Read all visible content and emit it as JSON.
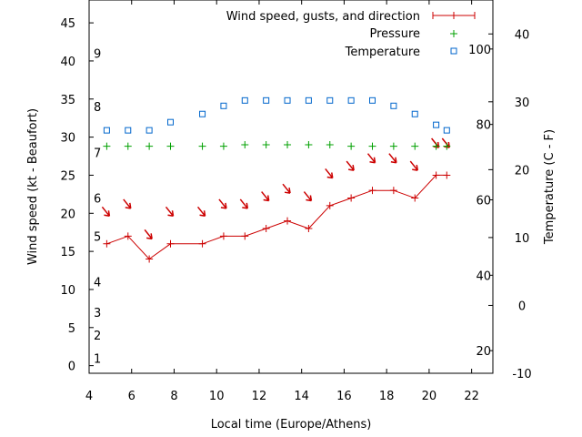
{
  "chart_data": {
    "type": "line",
    "title": "",
    "xlabel": "Local time (Europe/Athens)",
    "ylabel": "Wind speed (kt - Beaufort)",
    "y2label": "Temperature (C - F)",
    "xlim": [
      4,
      23
    ],
    "ylim": [
      -1,
      48
    ],
    "y2lim": [
      -10,
      45
    ],
    "xticks": [
      4,
      6,
      8,
      10,
      12,
      14,
      16,
      18,
      20,
      22
    ],
    "yticks": [
      0,
      5,
      10,
      15,
      20,
      25,
      30,
      35,
      40,
      45
    ],
    "y2ticks_celsius": [
      -10,
      0,
      10,
      20,
      30,
      40
    ],
    "y2ticks_fahrenheit": [
      20,
      40,
      60,
      80,
      100
    ],
    "beaufort_labels": [
      {
        "label": "1",
        "kt": 1
      },
      {
        "label": "2",
        "kt": 4
      },
      {
        "label": "3",
        "kt": 7
      },
      {
        "label": "4",
        "kt": 11
      },
      {
        "label": "5",
        "kt": 17
      },
      {
        "label": "6",
        "kt": 22
      },
      {
        "label": "7",
        "kt": 28
      },
      {
        "label": "8",
        "kt": 34
      },
      {
        "label": "9",
        "kt": 41
      }
    ],
    "legend_position": "top-right",
    "grid": false,
    "series": [
      {
        "name": "Wind speed, gusts, and direction",
        "style": "line-points",
        "color": "#cc0000",
        "x": [
          4.83,
          5.83,
          6.83,
          7.83,
          9.33,
          10.33,
          11.33,
          12.33,
          13.33,
          14.33,
          15.33,
          16.33,
          17.33,
          18.33,
          19.33,
          20.33,
          20.83
        ],
        "values": [
          16,
          17,
          14,
          16,
          16,
          17,
          17,
          18,
          19,
          18,
          21,
          22,
          23,
          23,
          22,
          25,
          25
        ],
        "direction_arrow_kt": [
          20,
          21,
          17,
          20,
          20,
          21,
          21,
          22,
          23,
          22,
          25,
          26,
          27,
          27,
          26,
          29,
          29
        ]
      },
      {
        "name": "Pressure",
        "style": "points-plus",
        "color": "#00a000",
        "x": [
          4.83,
          5.83,
          6.83,
          7.83,
          9.33,
          10.33,
          11.33,
          12.33,
          13.33,
          14.33,
          15.33,
          16.33,
          17.33,
          18.33,
          19.33,
          20.33,
          20.83
        ],
        "values": [
          28.8,
          28.8,
          28.8,
          28.8,
          28.8,
          28.8,
          29.0,
          29.0,
          29.0,
          29.0,
          29.0,
          28.8,
          28.8,
          28.8,
          28.8,
          28.8,
          28.8
        ]
      },
      {
        "name": "Temperature",
        "style": "points-square",
        "color": "#0066cc",
        "axis": "y2",
        "x": [
          4.83,
          5.83,
          6.83,
          7.83,
          9.33,
          10.33,
          11.33,
          12.33,
          13.33,
          14.33,
          15.33,
          16.33,
          17.33,
          18.33,
          19.33,
          20.33,
          20.83
        ],
        "values": [
          25.8,
          25.8,
          25.8,
          27.0,
          28.2,
          29.4,
          30.2,
          30.2,
          30.2,
          30.2,
          30.2,
          30.2,
          30.2,
          29.4,
          28.2,
          26.6,
          25.8
        ]
      }
    ]
  }
}
